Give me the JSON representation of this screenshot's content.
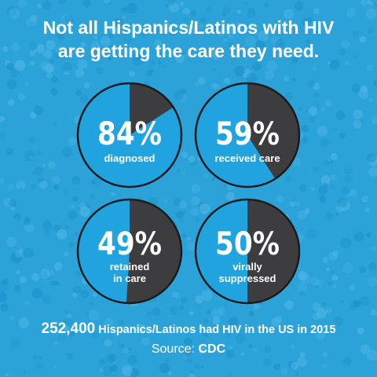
{
  "title": {
    "line1": "Not all Hispanics/Latinos with HIV",
    "line2": "are getting the care they need."
  },
  "colors": {
    "background": "#2ba3d9",
    "filled": "#21a3e0",
    "unfilled": "#3d3d40",
    "text": "#ffffff"
  },
  "chart_data": {
    "type": "pie",
    "charts": [
      {
        "value": 84,
        "label_value": "84%",
        "label_lines": [
          "diagnosed"
        ]
      },
      {
        "value": 59,
        "label_value": "59%",
        "label_lines": [
          "received care"
        ]
      },
      {
        "value": 49,
        "label_value": "49%",
        "label_lines": [
          "retained",
          "in care"
        ]
      },
      {
        "value": 50,
        "label_value": "50%",
        "label_lines": [
          "virally",
          "suppressed"
        ]
      }
    ]
  },
  "footer": {
    "count": "252,400",
    "text": "Hispanics/Latinos had HIV in the US in 2015",
    "source_prefix": "Source:",
    "source_name": "CDC"
  }
}
